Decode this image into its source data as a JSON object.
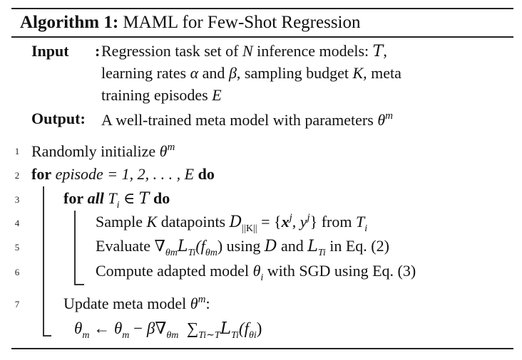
{
  "algorithm": {
    "label": "Algorithm 1:",
    "title": "MAML for Few-Shot Regression"
  },
  "input": {
    "label": "Input",
    "colon": ":",
    "line1_pre": "Regression task set of ",
    "N": "N",
    "line1_post": " inference models: ",
    "T": "T",
    "line1_end": ",",
    "line2_a": "learning rates ",
    "alpha": "α",
    "line2_b": " and ",
    "beta": "β",
    "line2_c": ", sampling budget ",
    "K": "K",
    "line2_d": ", meta",
    "line3_a": "training episodes ",
    "E": "E"
  },
  "output": {
    "label": "Output",
    "colon": ":",
    "text": "A well-trained meta model with parameters ",
    "theta": "θ",
    "sup": "m"
  },
  "lines": [
    {
      "num": "1",
      "text": "Randomly initialize ",
      "theta": "θ",
      "sup": "m"
    },
    {
      "num": "2",
      "kw": "for",
      "var": " episode",
      "mid": " = 1, 2, . . . , ",
      "E": "E",
      "kw2": "do"
    },
    {
      "num": "3",
      "kw": "for",
      "kw_all": "all",
      "T": "T",
      "sub": "i",
      "in": "∈",
      "calT": "T",
      "kw2": "do"
    },
    {
      "num": "4",
      "a": "Sample ",
      "K": "K",
      "b": " datapoints ",
      "D": "D",
      "sub": "||K||",
      "c": " = {",
      "x": "x",
      "xsup": "j",
      "comma": ", ",
      "y": "y",
      "ysup": "j",
      "d": "} from ",
      "T": "T",
      "Tsub": "i"
    },
    {
      "num": "5",
      "a": "Evaluate ",
      "nabla": "∇",
      "nsub": "θm",
      "L": "L",
      "Lsub": "Ti",
      "f": "(f",
      "fsub": "θm",
      "close": ")",
      "b": " using ",
      "D": "D",
      "c": " and ",
      "L2": "L",
      "L2sub": "Ti",
      "d": " in Eq. (2)"
    },
    {
      "num": "6",
      "a": "Compute adapted model ",
      "theta": "θ",
      "sub": "i",
      "b": " with SGD using Eq. (3)"
    },
    {
      "num": "7",
      "a": "Update meta model ",
      "theta": "θ",
      "sup": "m",
      "b": ":"
    }
  ],
  "update_eq": {
    "theta": "θ",
    "m": "m",
    "arrow": " ← ",
    "minus": " − ",
    "beta": "β",
    "nabla": "∇",
    "nsub": "θm",
    "sum": "∑",
    "sumsub": "Ti∼T",
    "L": "L",
    "Lsub": "Ti",
    "f": "(f",
    "fsub": "θi",
    "close": ")"
  }
}
